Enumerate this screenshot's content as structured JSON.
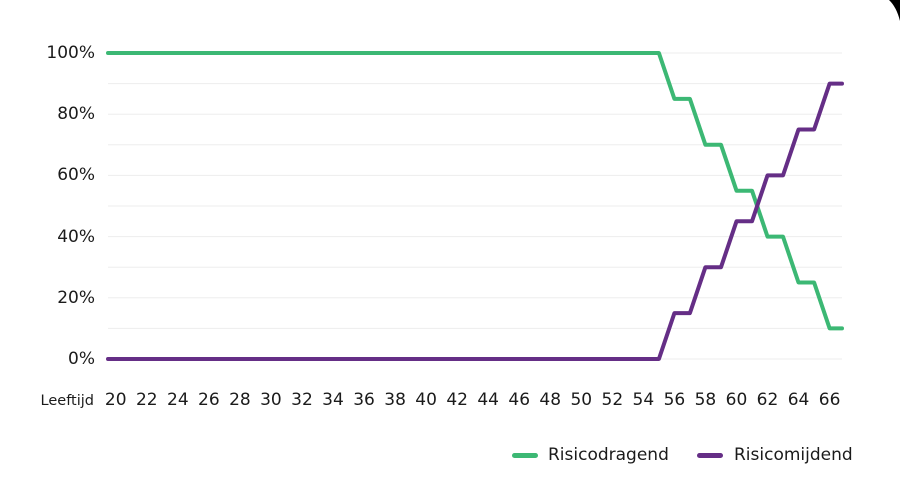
{
  "chart_data": {
    "type": "line",
    "title": "",
    "xlabel": "Leeftijd",
    "ylabel": "",
    "grid": true,
    "grid_step": 10,
    "grid_color": "#ededed",
    "legend_position": "bottom-right",
    "xlim": [
      19.5,
      66.8
    ],
    "ylim": [
      0,
      100
    ],
    "x": [
      20,
      21,
      22,
      23,
      24,
      25,
      26,
      27,
      28,
      29,
      30,
      31,
      32,
      33,
      34,
      35,
      36,
      37,
      38,
      39,
      40,
      41,
      42,
      43,
      44,
      45,
      46,
      47,
      48,
      49,
      50,
      51,
      52,
      53,
      54,
      55,
      56,
      57,
      58,
      59,
      60,
      61,
      62,
      63,
      64,
      65,
      66
    ],
    "x_ticks": [
      20,
      22,
      24,
      26,
      28,
      30,
      32,
      34,
      36,
      38,
      40,
      42,
      44,
      46,
      48,
      50,
      52,
      54,
      56,
      58,
      60,
      62,
      64,
      66
    ],
    "y_ticks": [
      {
        "value": 0,
        "label": "0%"
      },
      {
        "value": 20,
        "label": "20%"
      },
      {
        "value": 40,
        "label": "40%"
      },
      {
        "value": 60,
        "label": "60%"
      },
      {
        "value": 80,
        "label": "80%"
      },
      {
        "value": 100,
        "label": "100%"
      }
    ],
    "series": [
      {
        "name": "Risicodragend",
        "color": "#3cb874",
        "values": [
          100,
          100,
          100,
          100,
          100,
          100,
          100,
          100,
          100,
          100,
          100,
          100,
          100,
          100,
          100,
          100,
          100,
          100,
          100,
          100,
          100,
          100,
          100,
          100,
          100,
          100,
          100,
          100,
          100,
          100,
          100,
          100,
          100,
          100,
          100,
          100,
          85,
          85,
          70,
          70,
          55,
          55,
          40,
          40,
          25,
          25,
          10
        ]
      },
      {
        "name": "Risicomijdend",
        "color": "#652e86",
        "values": [
          0,
          0,
          0,
          0,
          0,
          0,
          0,
          0,
          0,
          0,
          0,
          0,
          0,
          0,
          0,
          0,
          0,
          0,
          0,
          0,
          0,
          0,
          0,
          0,
          0,
          0,
          0,
          0,
          0,
          0,
          0,
          0,
          0,
          0,
          0,
          0,
          15,
          15,
          30,
          30,
          45,
          45,
          60,
          60,
          75,
          75,
          90
        ]
      }
    ]
  },
  "ornament": {
    "name": "page-corner-fold",
    "color": "#000000"
  },
  "text_color": "#1b1b1b"
}
